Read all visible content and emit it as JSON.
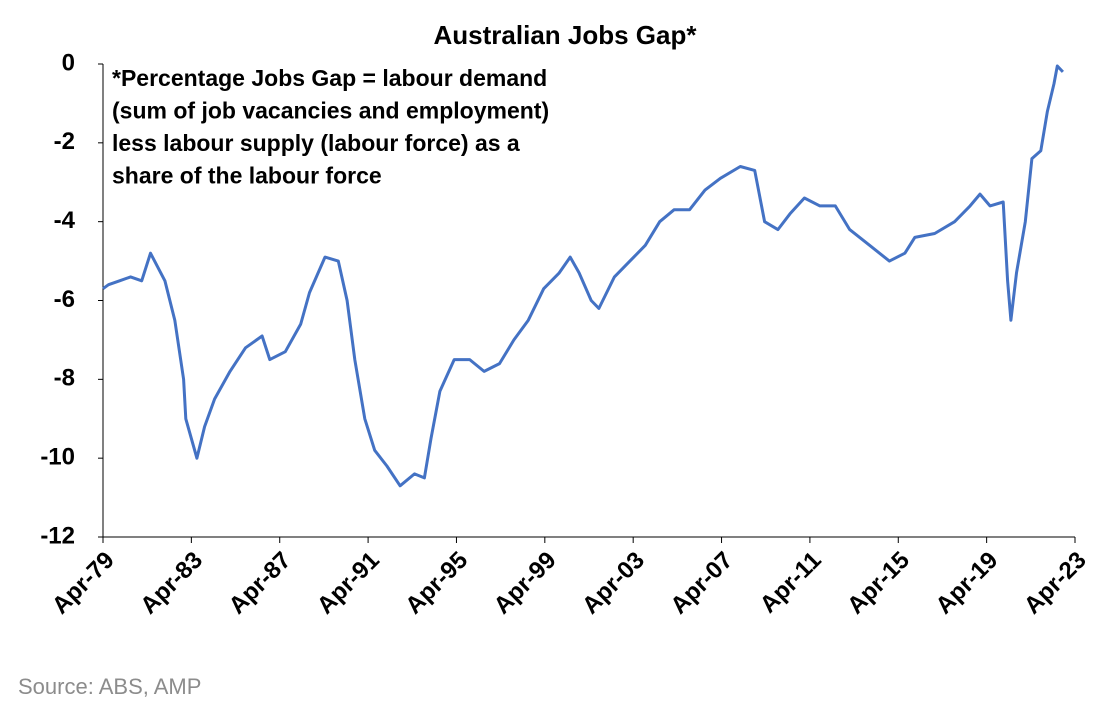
{
  "chart_data": {
    "type": "line",
    "title": "Australian Jobs Gap*",
    "annotation": [
      "*Percentage Jobs Gap = labour demand",
      "(sum of job vacancies and employment)",
      "less labour supply (labour force) as a",
      "share of the labour force"
    ],
    "source": "Source: ABS, AMP",
    "x": [
      1979.25,
      1979.5,
      1980,
      1980.5,
      1981,
      1981.4,
      1982.05,
      1982.5,
      1982.9,
      1983,
      1983.5,
      1983.85,
      1984.3,
      1985,
      1985.7,
      1986.45,
      1986.8,
      1987.5,
      1988.2,
      1988.6,
      1989.3,
      1989.9,
      1990.3,
      1990.65,
      1991.1,
      1991.55,
      1992.1,
      1992.7,
      1993.35,
      1993.8,
      1994.1,
      1994.5,
      1995.15,
      1995.85,
      1996.5,
      1997.2,
      1997.85,
      1998.5,
      1999.2,
      1999.9,
      2000.4,
      2000.8,
      2001.35,
      2001.7,
      2002.4,
      2003.1,
      2003.8,
      2004.45,
      2005.1,
      2005.8,
      2006.5,
      2007.2,
      2008.1,
      2008.75,
      2009.2,
      2009.8,
      2010.35,
      2011,
      2011.7,
      2012.4,
      2013.05,
      2013.95,
      2014.85,
      2015.55,
      2016,
      2016.9,
      2017.8,
      2018.5,
      2018.95,
      2019.4,
      2020,
      2020.2,
      2020.35,
      2020.6,
      2021,
      2021.3,
      2021.7,
      2022,
      2022.3,
      2022.45,
      2022.7
    ],
    "series": [
      {
        "name": "Jobs Gap",
        "color": "#4472c4",
        "values": [
          -5.7,
          -5.6,
          -5.5,
          -5.4,
          -5.5,
          -4.8,
          -5.5,
          -6.5,
          -8.0,
          -9.0,
          -10.0,
          -9.2,
          -8.5,
          -7.8,
          -7.2,
          -6.9,
          -7.5,
          -7.3,
          -6.6,
          -5.8,
          -4.9,
          -5.0,
          -6.0,
          -7.5,
          -9.0,
          -9.8,
          -10.2,
          -10.7,
          -10.4,
          -10.5,
          -9.5,
          -8.3,
          -7.5,
          -7.5,
          -7.8,
          -7.6,
          -7.0,
          -6.5,
          -5.7,
          -5.3,
          -4.9,
          -5.3,
          -6.0,
          -6.2,
          -5.4,
          -5.0,
          -4.6,
          -4.0,
          -3.7,
          -3.7,
          -3.2,
          -2.9,
          -2.6,
          -2.7,
          -4.0,
          -4.2,
          -3.8,
          -3.4,
          -3.6,
          -3.6,
          -4.2,
          -4.6,
          -5.0,
          -4.8,
          -4.4,
          -4.3,
          -4.0,
          -3.6,
          -3.3,
          -3.6,
          -3.5,
          -5.5,
          -6.5,
          -5.3,
          -4.0,
          -2.4,
          -2.2,
          -1.2,
          -0.5,
          -0.05,
          -0.2
        ]
      }
    ],
    "xlim": [
      1979.25,
      2023.25
    ],
    "xticks": [
      {
        "value": 1979.25,
        "label": "Apr-79"
      },
      {
        "value": 1983.25,
        "label": "Apr-83"
      },
      {
        "value": 1987.25,
        "label": "Apr-87"
      },
      {
        "value": 1991.25,
        "label": "Apr-91"
      },
      {
        "value": 1995.25,
        "label": "Apr-95"
      },
      {
        "value": 1999.25,
        "label": "Apr-99"
      },
      {
        "value": 2003.25,
        "label": "Apr-03"
      },
      {
        "value": 2007.25,
        "label": "Apr-07"
      },
      {
        "value": 2011.25,
        "label": "Apr-11"
      },
      {
        "value": 2015.25,
        "label": "Apr-15"
      },
      {
        "value": 2019.25,
        "label": "Apr-19"
      },
      {
        "value": 2023.25,
        "label": "Apr-23"
      }
    ],
    "ylim": [
      -12,
      0
    ],
    "yticks": [
      -12,
      -10,
      -8,
      -6,
      -4,
      -2,
      0
    ],
    "grid": false
  }
}
